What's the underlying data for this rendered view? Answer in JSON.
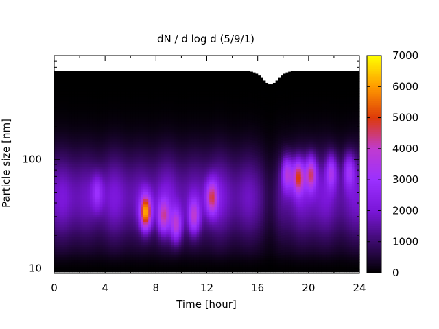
{
  "chart_data": {
    "type": "heatmap",
    "title": "dN / d log d (5/9/1)",
    "xlabel": "Time [hour]",
    "ylabel": "Particle size [nm]",
    "xlim": [
      0,
      24
    ],
    "xticks": [
      0,
      4,
      8,
      12,
      16,
      20,
      24
    ],
    "ylim": [
      9,
      900
    ],
    "yscale": "log",
    "yticks": [
      10,
      100
    ],
    "colorbar": {
      "range": [
        0,
        7000
      ],
      "ticks": [
        0,
        1000,
        2000,
        3000,
        4000,
        5000,
        6000,
        7000
      ],
      "colormap": [
        "#000000",
        "#3b0a6b",
        "#7a16d8",
        "#9b30ff",
        "#c03bd0",
        "#dd3a0a",
        "#ff9a00",
        "#ffff00"
      ]
    },
    "features": [
      {
        "type": "base",
        "size_nm": 45,
        "value": 2100
      },
      {
        "type": "burst",
        "time_h": 7.2,
        "size_nm": 33,
        "value": 6000
      },
      {
        "type": "burst",
        "time_h": 8.6,
        "size_nm": 30,
        "value": 3900
      },
      {
        "type": "burst",
        "time_h": 9.6,
        "size_nm": 25,
        "value": 4000
      },
      {
        "type": "burst",
        "time_h": 11.0,
        "size_nm": 30,
        "value": 3800
      },
      {
        "type": "burst",
        "time_h": 12.4,
        "size_nm": 45,
        "value": 4200
      },
      {
        "type": "burst",
        "time_h": 3.4,
        "size_nm": 50,
        "value": 2800
      },
      {
        "type": "burst",
        "time_h": 18.3,
        "size_nm": 75,
        "value": 4000
      },
      {
        "type": "burst",
        "time_h": 19.2,
        "size_nm": 70,
        "value": 4800
      },
      {
        "type": "burst",
        "time_h": 20.2,
        "size_nm": 75,
        "value": 4500
      },
      {
        "type": "burst",
        "time_h": 21.8,
        "size_nm": 78,
        "value": 3400
      },
      {
        "type": "burst",
        "time_h": 23.2,
        "size_nm": 80,
        "value": 3200
      },
      {
        "type": "gap",
        "time_h": 17.0,
        "value": 0
      },
      {
        "type": "upper_limit",
        "size_nm": 650
      }
    ]
  }
}
